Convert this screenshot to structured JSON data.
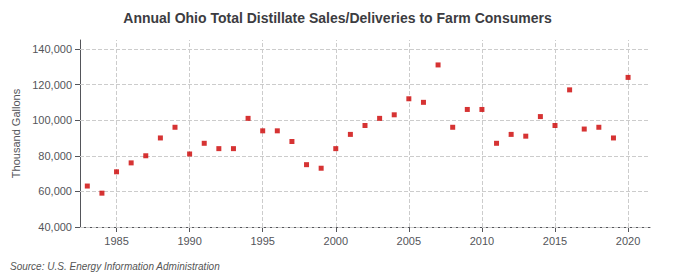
{
  "chart_data": {
    "type": "scatter",
    "title": "Annual Ohio Total Distillate Sales/Deliveries to Farm Consumers",
    "ylabel": "Thousand Gallons",
    "annotations": [
      "Source: U.S. Energy Information Administration"
    ],
    "x": [
      1983,
      1984,
      1985,
      1986,
      1987,
      1988,
      1989,
      1990,
      1991,
      1992,
      1993,
      1994,
      1995,
      1996,
      1997,
      1998,
      1999,
      2000,
      2001,
      2002,
      2003,
      2004,
      2005,
      2006,
      2007,
      2008,
      2009,
      2010,
      2011,
      2012,
      2013,
      2014,
      2015,
      2016,
      2017,
      2018,
      2019,
      2020
    ],
    "values": [
      63000,
      59000,
      71000,
      76000,
      80000,
      90000,
      96000,
      81000,
      87000,
      84000,
      84000,
      101000,
      94000,
      94000,
      88000,
      75000,
      73000,
      84000,
      92000,
      97000,
      101000,
      103000,
      112000,
      110000,
      131000,
      96000,
      106000,
      106000,
      87000,
      92000,
      91000,
      102000,
      97000,
      117000,
      95000,
      96000,
      90000,
      124000
    ],
    "color": "#cc0000",
    "marker": "square",
    "xlim": [
      1982.5,
      2021.5
    ],
    "xticks": [
      1985,
      1990,
      1995,
      2000,
      2005,
      2010,
      2015,
      2020
    ],
    "ylim": [
      40000,
      145000
    ],
    "yticks": [
      {
        "value": 40000,
        "label": "40,000"
      },
      {
        "value": 60000,
        "label": "60,000"
      },
      {
        "value": 80000,
        "label": "80,000"
      },
      {
        "value": 100000,
        "label": "100,000"
      },
      {
        "value": 120000,
        "label": "120,000"
      },
      {
        "value": 140000,
        "label": "140,000"
      }
    ],
    "grid": true
  }
}
